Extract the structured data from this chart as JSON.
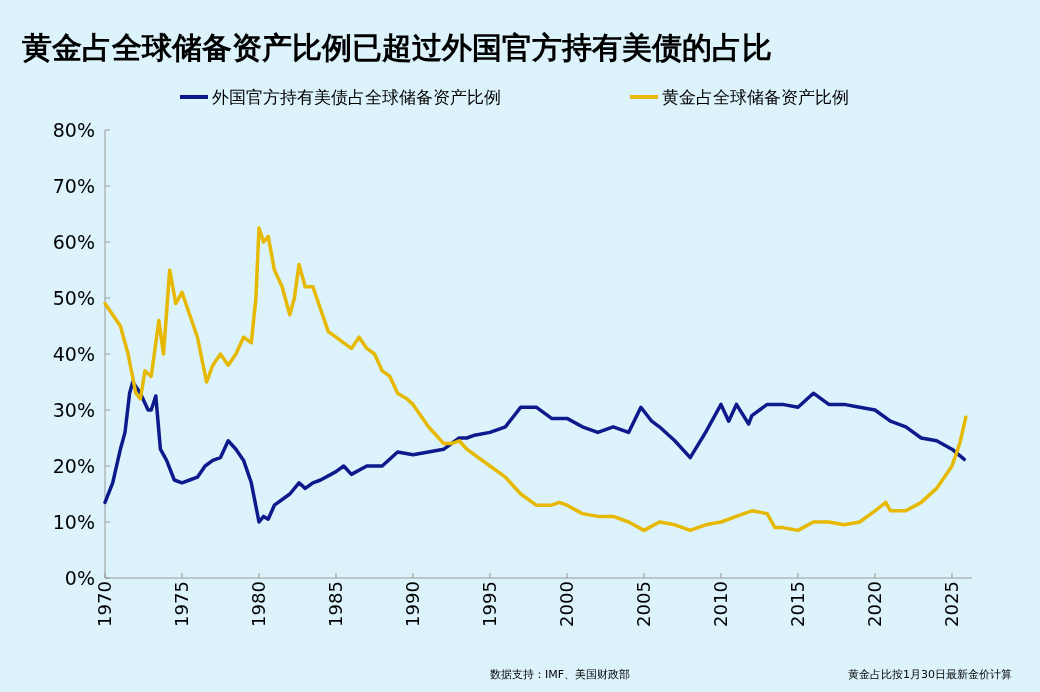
{
  "chart_data": {
    "type": "line",
    "title": "黄金占全球储备资产比例已超过外国官方持有美债的占比",
    "xlim": [
      1970,
      2026.3
    ],
    "xticks": [
      1970,
      1975,
      1980,
      1985,
      1990,
      1995,
      2000,
      2005,
      2010,
      2015,
      2020,
      2025
    ],
    "ylim": [
      0,
      80
    ],
    "yticks": [
      {
        "value": 0,
        "label": "0%"
      },
      {
        "value": 10,
        "label": "10%"
      },
      {
        "value": 20,
        "label": "20%"
      },
      {
        "value": 30,
        "label": "30%"
      },
      {
        "value": 40,
        "label": "40%"
      },
      {
        "value": 50,
        "label": "50%"
      },
      {
        "value": 60,
        "label": "60%"
      },
      {
        "value": 70,
        "label": "70%"
      },
      {
        "value": 80,
        "label": "80%"
      }
    ],
    "legend": "top",
    "grid": false,
    "series": [
      {
        "name": "外国官方持有美债占全球储备资产比例",
        "color": "#0d1a8c",
        "x": [
          1970,
          1970.5,
          1971,
          1971.3,
          1971.6,
          1971.8,
          1972.3,
          1972.8,
          1973,
          1973.3,
          1973.6,
          1974,
          1974.5,
          1975,
          1975.5,
          1976,
          1976.5,
          1977,
          1977.5,
          1978,
          1978.5,
          1979,
          1979.5,
          1980,
          1980.3,
          1980.6,
          1981,
          1982,
          1982.6,
          1983,
          1983.5,
          1984,
          1985,
          1985.5,
          1986,
          1987,
          1988,
          1989,
          1990,
          1991,
          1992,
          1993,
          1993.5,
          1994,
          1995,
          1996,
          1997,
          1998,
          1999,
          2000,
          2001,
          2002,
          2003,
          2004,
          2004.8,
          2005.5,
          2006,
          2007,
          2008,
          2009,
          2010,
          2010.5,
          2011,
          2011.8,
          2012,
          2013,
          2014,
          2015,
          2016,
          2017,
          2018,
          2019,
          2020,
          2021,
          2022,
          2023,
          2024,
          2025,
          2025.8
        ],
        "values": [
          13.5,
          17,
          23,
          26,
          33,
          35,
          33,
          30,
          30,
          32.5,
          23,
          21,
          17.5,
          17,
          17.5,
          18,
          20,
          21,
          21.5,
          24.5,
          23,
          21,
          17,
          10,
          11,
          10.5,
          13,
          15,
          17,
          16,
          17,
          17.5,
          19,
          20,
          18.5,
          20,
          20,
          22.5,
          22,
          22.5,
          23,
          25,
          25,
          25.5,
          26,
          27,
          30.5,
          30.5,
          28.5,
          28.5,
          27,
          26,
          27,
          26,
          30.5,
          28,
          27,
          24.5,
          21.5,
          26,
          31,
          28,
          31,
          27.5,
          29,
          31,
          31,
          30.5,
          33,
          31,
          31,
          30.5,
          30,
          28,
          27,
          25,
          24.5,
          23,
          21.2
        ]
      },
      {
        "name": "黄金占全球储备资产比例",
        "color": "#e6b800",
        "x": [
          1970,
          1970.5,
          1971,
          1971.5,
          1972,
          1972.3,
          1972.6,
          1973,
          1973.5,
          1973.8,
          1974.2,
          1974.6,
          1975,
          1975.5,
          1976,
          1976.6,
          1977,
          1977.5,
          1978,
          1978.5,
          1979,
          1979.5,
          1979.8,
          1980,
          1980.3,
          1980.6,
          1981,
          1981.5,
          1982,
          1982.3,
          1982.6,
          1983,
          1983.5,
          1984,
          1984.5,
          1985,
          1985.5,
          1986,
          1986.5,
          1987,
          1987.5,
          1988,
          1988.5,
          1989,
          1989.6,
          1990,
          1991,
          1992,
          1992.5,
          1993,
          1993.5,
          1994,
          1995,
          1996,
          1997,
          1998,
          1999,
          1999.5,
          2000,
          2001,
          2002,
          2003,
          2004,
          2005,
          2006,
          2007,
          2008,
          2009,
          2010,
          2011,
          2012,
          2013,
          2013.5,
          2014,
          2015,
          2016,
          2017,
          2018,
          2019,
          2020,
          2020.7,
          2021,
          2022,
          2023,
          2024,
          2025,
          2025.5,
          2025.9
        ],
        "values": [
          49,
          47,
          45,
          40,
          33,
          32,
          37,
          36,
          46,
          40,
          55,
          49,
          51,
          47,
          43,
          35,
          38,
          40,
          38,
          40,
          43,
          42,
          50,
          62.5,
          60,
          61,
          55,
          52,
          47,
          50,
          56,
          52,
          52,
          48,
          44,
          43,
          42,
          41,
          43,
          41,
          40,
          37,
          36,
          33,
          32,
          31,
          27,
          24,
          24,
          24.5,
          23,
          22,
          20,
          18,
          15,
          13,
          13,
          13.5,
          13,
          11.5,
          11,
          11,
          10,
          8.5,
          10,
          9.5,
          8.5,
          9.5,
          10,
          11,
          12,
          11.5,
          9,
          9,
          8.5,
          10,
          10,
          9.5,
          10,
          12,
          13.5,
          12,
          12,
          13.5,
          16,
          20,
          24,
          28.7
        ]
      }
    ],
    "annotations": [
      "数据支持：IMF、美国财政部",
      "黄金占比按1月30日最新金价计算"
    ]
  }
}
